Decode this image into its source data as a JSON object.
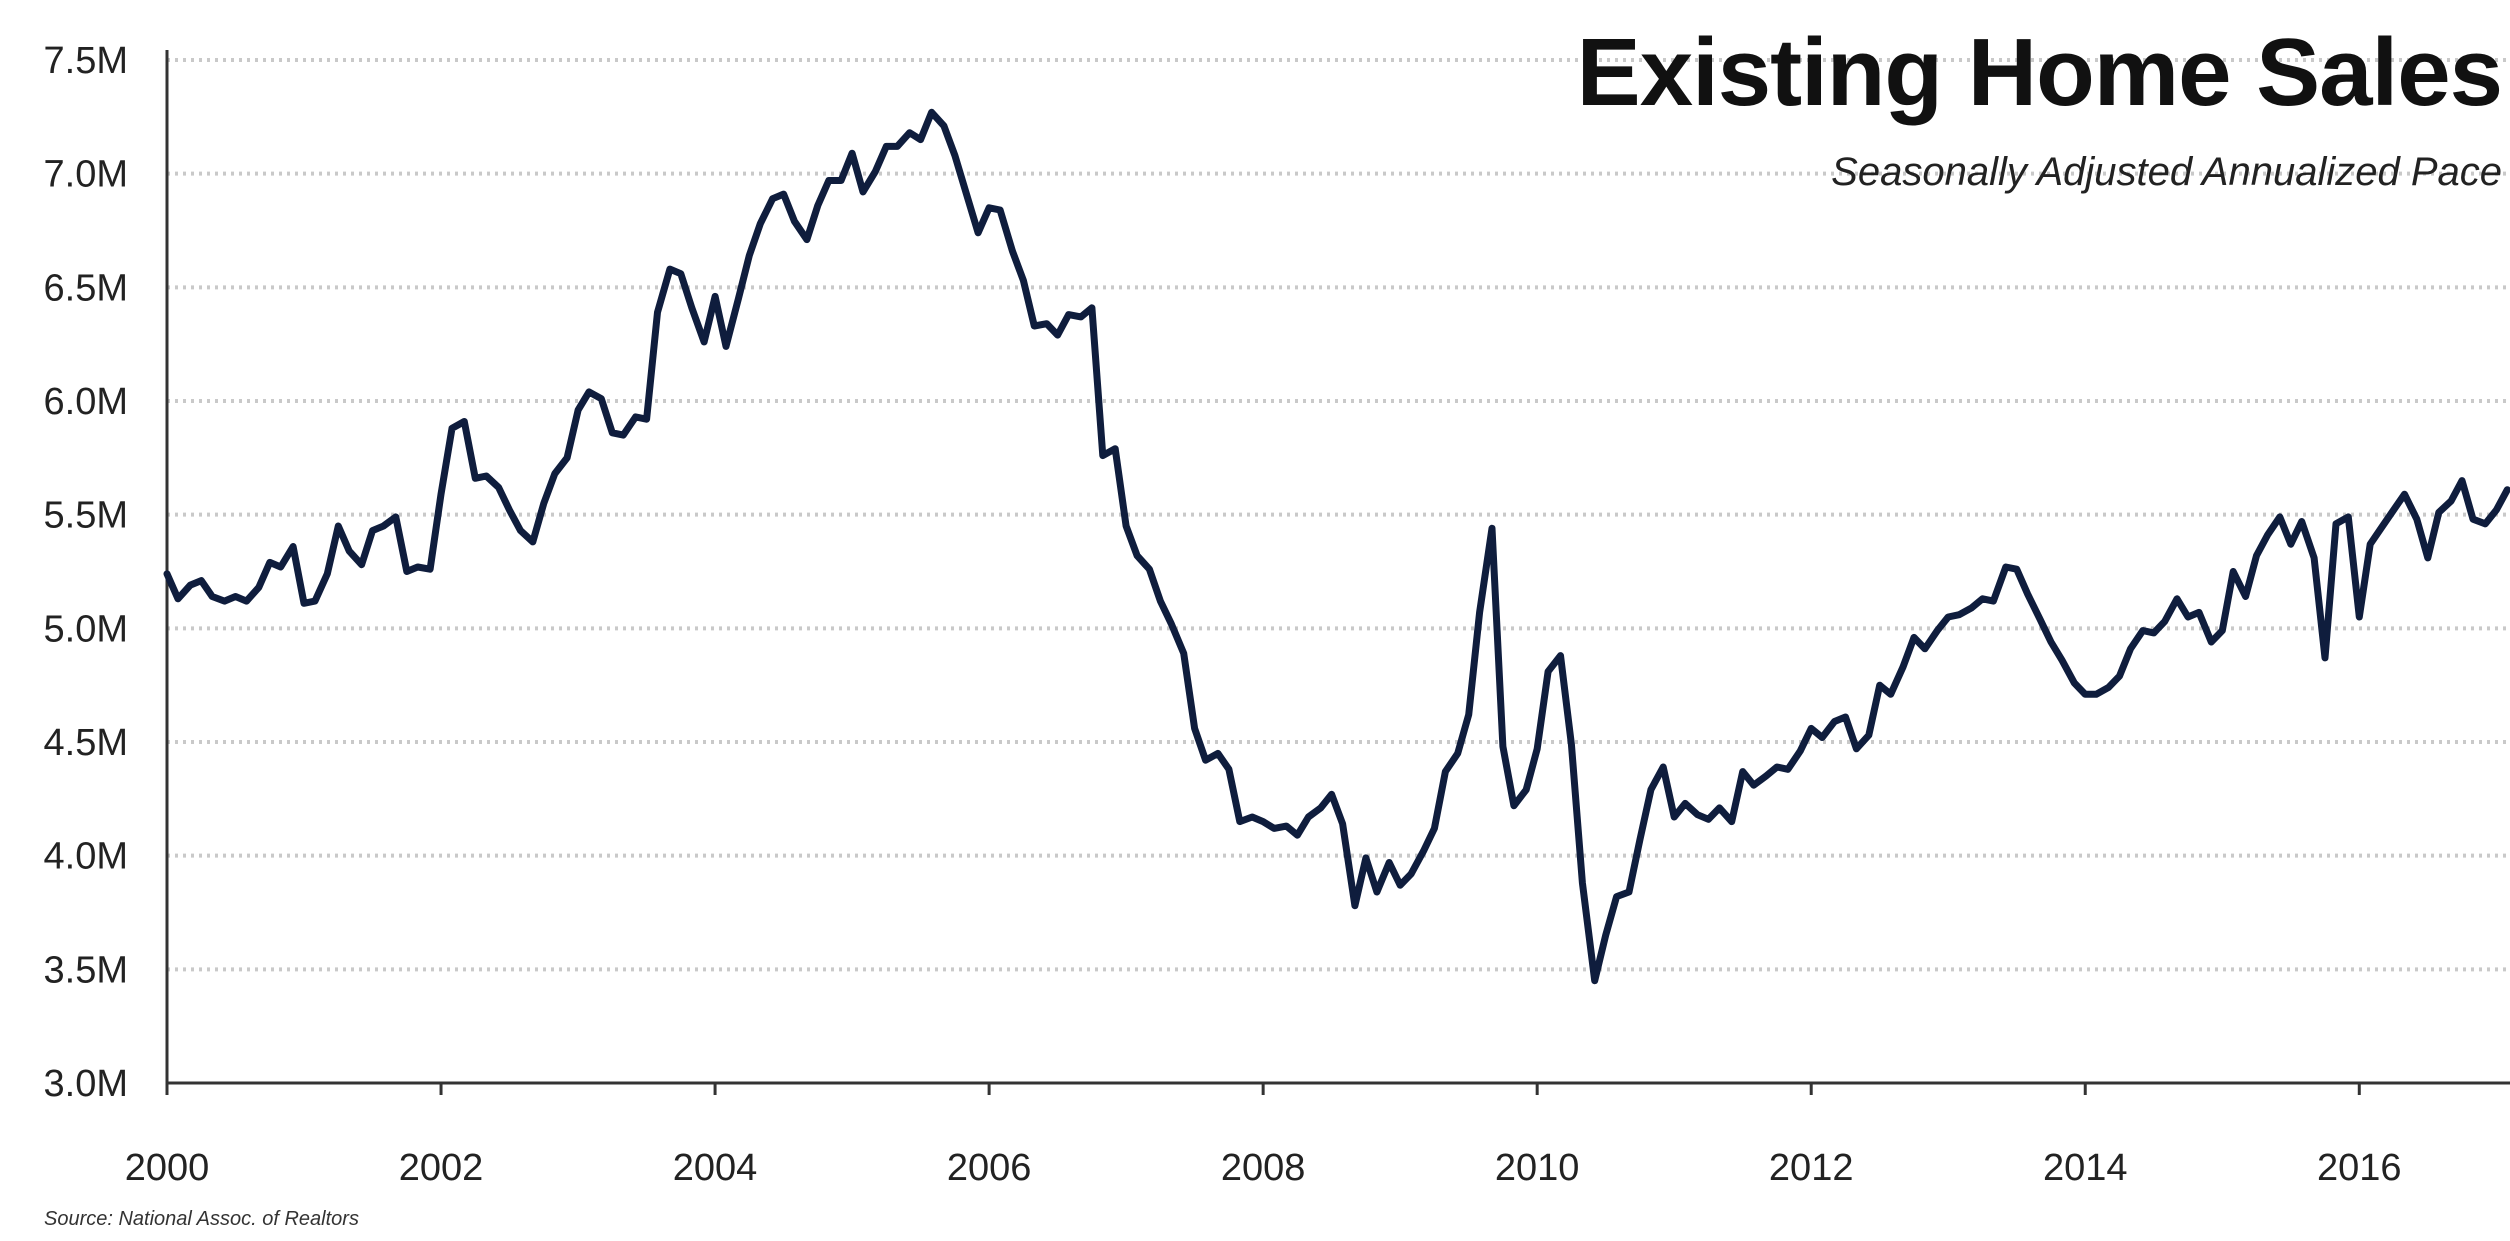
{
  "chart_data": {
    "type": "line",
    "title": "Existing Home Sales",
    "subtitle": "Seasonally Adjusted Annualized Pace",
    "source": "Source: National Assoc. of Realtors",
    "xlabel": "",
    "ylabel": "",
    "xlim": [
      2000,
      2017.1
    ],
    "ylim": [
      3.0,
      7.5
    ],
    "y_ticks": [
      3.0,
      3.5,
      4.0,
      4.5,
      5.0,
      5.5,
      6.0,
      6.5,
      7.0,
      7.5
    ],
    "y_tick_labels": [
      "3.0M",
      "3.5M",
      "4.0M",
      "4.5M",
      "5.0M",
      "5.5M",
      "6.0M",
      "6.5M",
      "7.0M",
      "7.5M"
    ],
    "x_ticks": [
      2000,
      2002,
      2004,
      2006,
      2008,
      2010,
      2012,
      2014,
      2016
    ],
    "x_tick_labels": [
      "2000",
      "2002",
      "2004",
      "2006",
      "2008",
      "2010",
      "2012",
      "2014",
      "2016"
    ],
    "grid": "horizontal dotted",
    "legend": "none",
    "line_color": "#0f1d3d",
    "series": [
      {
        "x": [
          2000.0,
          2000.08,
          2000.17,
          2000.25,
          2000.33,
          2000.42,
          2000.5,
          2000.58,
          2000.67,
          2000.75,
          2000.83,
          2000.92,
          2001.0,
          2001.08,
          2001.17,
          2001.25,
          2001.33,
          2001.42,
          2001.5,
          2001.58,
          2001.67,
          2001.75,
          2001.83,
          2001.92,
          2002.0,
          2002.08,
          2002.17,
          2002.25,
          2002.33,
          2002.42,
          2002.5,
          2002.58,
          2002.67,
          2002.75,
          2002.83,
          2002.92,
          2003.0,
          2003.08,
          2003.17,
          2003.25,
          2003.33,
          2003.42,
          2003.5,
          2003.58,
          2003.67,
          2003.75,
          2003.83,
          2003.92,
          2004.0,
          2004.08,
          2004.17,
          2004.25,
          2004.33,
          2004.42,
          2004.5,
          2004.58,
          2004.67,
          2004.75,
          2004.83,
          2004.92,
          2005.0,
          2005.08,
          2005.17,
          2005.25,
          2005.33,
          2005.42,
          2005.5,
          2005.58,
          2005.67,
          2005.75,
          2005.83,
          2005.92,
          2006.0,
          2006.08,
          2006.17,
          2006.25,
          2006.33,
          2006.42,
          2006.5,
          2006.58,
          2006.67,
          2006.75,
          2006.83,
          2006.92,
          2007.0,
          2007.08,
          2007.17,
          2007.25,
          2007.33,
          2007.42,
          2007.5,
          2007.58,
          2007.67,
          2007.75,
          2007.83,
          2007.92,
          2008.0,
          2008.08,
          2008.17,
          2008.25,
          2008.33,
          2008.42,
          2008.5,
          2008.58,
          2008.67,
          2008.75,
          2008.83,
          2008.92,
          2009.0,
          2009.08,
          2009.17,
          2009.25,
          2009.33,
          2009.42,
          2009.5,
          2009.58,
          2009.67,
          2009.75,
          2009.83,
          2009.92,
          2010.0,
          2010.08,
          2010.17,
          2010.25,
          2010.33,
          2010.42,
          2010.5,
          2010.58,
          2010.67,
          2010.75,
          2010.83,
          2010.92,
          2011.0,
          2011.08,
          2011.17,
          2011.25,
          2011.33,
          2011.42,
          2011.5,
          2011.58,
          2011.67,
          2011.75,
          2011.83,
          2011.92,
          2012.0,
          2012.08,
          2012.17,
          2012.25,
          2012.33,
          2012.42,
          2012.5,
          2012.58,
          2012.67,
          2012.75,
          2012.83,
          2012.92,
          2013.0,
          2013.08,
          2013.17,
          2013.25,
          2013.33,
          2013.42,
          2013.5,
          2013.58,
          2013.67,
          2013.75,
          2013.83,
          2013.92,
          2014.0,
          2014.08,
          2014.17,
          2014.25,
          2014.33,
          2014.42,
          2014.5,
          2014.58,
          2014.67,
          2014.75,
          2014.83,
          2014.92,
          2015.0,
          2015.08,
          2015.17,
          2015.25,
          2015.33,
          2015.42,
          2015.5,
          2015.58,
          2015.67,
          2015.75,
          2015.83,
          2015.92,
          2016.0,
          2016.08,
          2016.17,
          2016.25,
          2016.33,
          2016.42,
          2016.5,
          2016.58,
          2016.67,
          2016.75,
          2016.83,
          2016.92,
          2017.0,
          2017.08
        ],
        "values": [
          5.24,
          5.13,
          5.19,
          5.21,
          5.14,
          5.12,
          5.14,
          5.12,
          5.18,
          5.29,
          5.27,
          5.36,
          5.11,
          5.12,
          5.24,
          5.45,
          5.34,
          5.28,
          5.43,
          5.45,
          5.49,
          5.25,
          5.27,
          5.26,
          5.59,
          5.88,
          5.91,
          5.66,
          5.67,
          5.62,
          5.52,
          5.43,
          5.38,
          5.55,
          5.68,
          5.75,
          5.96,
          6.04,
          6.01,
          5.86,
          5.85,
          5.93,
          5.92,
          6.39,
          6.58,
          6.56,
          6.41,
          6.26,
          6.46,
          6.24,
          6.45,
          6.64,
          6.78,
          6.89,
          6.91,
          6.79,
          6.71,
          6.86,
          6.97,
          6.97,
          7.09,
          6.92,
          7.01,
          7.12,
          7.12,
          7.18,
          7.15,
          7.27,
          7.21,
          7.08,
          6.92,
          6.74,
          6.85,
          6.84,
          6.66,
          6.53,
          6.33,
          6.34,
          6.29,
          6.38,
          6.37,
          6.41,
          5.76,
          5.79,
          5.45,
          5.32,
          5.26,
          5.12,
          5.02,
          4.89,
          4.56,
          4.42,
          4.45,
          4.38,
          4.15,
          4.17,
          4.15,
          4.12,
          4.13,
          4.09,
          4.17,
          4.21,
          4.27,
          4.14,
          3.78,
          3.99,
          3.84,
          3.97,
          3.87,
          3.92,
          4.02,
          4.12,
          4.37,
          4.45,
          4.62,
          5.07,
          5.44,
          4.48,
          4.22,
          4.29,
          4.47,
          4.81,
          4.88,
          4.49,
          3.88,
          3.45,
          3.65,
          3.82,
          3.84,
          4.07,
          4.29,
          4.39,
          4.17,
          4.23,
          4.18,
          4.16,
          4.21,
          4.15,
          4.37,
          4.31,
          4.35,
          4.39,
          4.38,
          4.46,
          4.56,
          4.52,
          4.59,
          4.61,
          4.47,
          4.53,
          4.75,
          4.71,
          4.83,
          4.96,
          4.91,
          4.99,
          5.05,
          5.06,
          5.09,
          5.13,
          5.12,
          5.27,
          5.26,
          5.15,
          5.04,
          4.94,
          4.86,
          4.76,
          4.71,
          4.71,
          4.74,
          4.79,
          4.91,
          4.99,
          4.98,
          5.03,
          5.13,
          5.05,
          5.07,
          4.94,
          4.99,
          5.25,
          5.14,
          5.32,
          5.41,
          5.49,
          5.37,
          5.47,
          5.31,
          4.87,
          5.46,
          5.49,
          5.05,
          5.37,
          5.45,
          5.52,
          5.59,
          5.48,
          5.31,
          5.51,
          5.56,
          5.65,
          5.48,
          5.46,
          5.52,
          5.61
        ]
      }
    ]
  }
}
